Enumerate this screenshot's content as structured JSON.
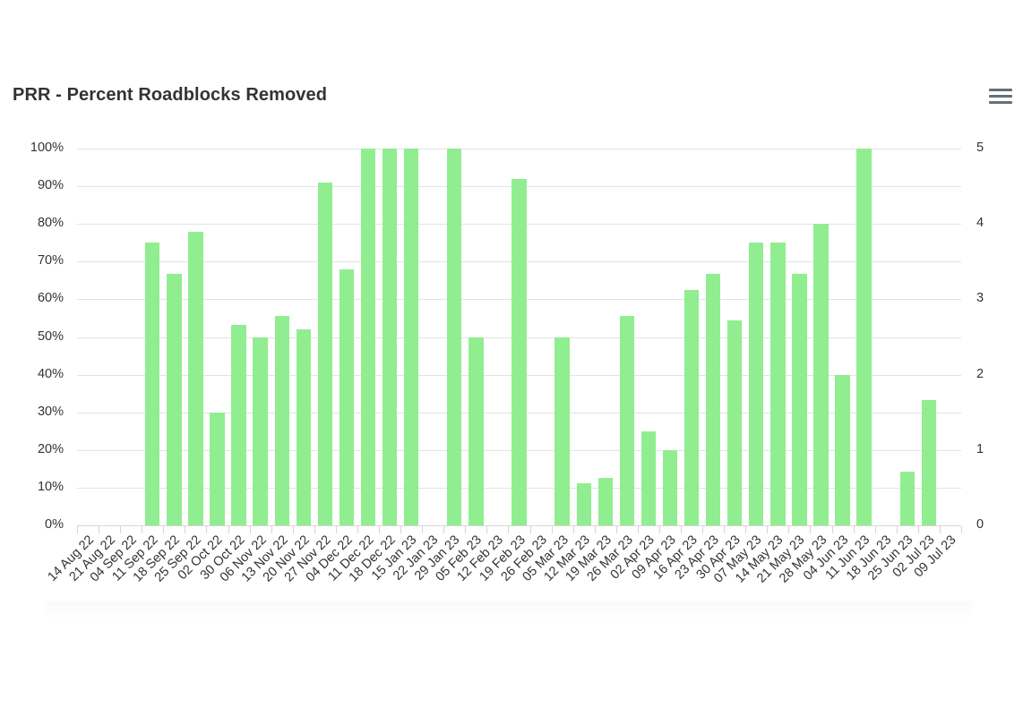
{
  "header": {
    "title": "PRR - Percent Roadblocks Removed",
    "menu_icon": "hamburger-menu-icon"
  },
  "colors": {
    "bar": "#90ee90",
    "grid": "#e3e3e3",
    "text": "#333333",
    "menu": "#666f7a"
  },
  "chart_data": {
    "type": "bar",
    "title": "PRR - Percent Roadblocks Removed",
    "xlabel": "",
    "ylabel": "",
    "ylim": [
      0,
      100
    ],
    "y_ticks": [
      "0%",
      "10%",
      "20%",
      "30%",
      "40%",
      "50%",
      "60%",
      "70%",
      "80%",
      "90%",
      "100%"
    ],
    "y2lim": [
      0,
      5
    ],
    "y2_ticks": [
      "0",
      "1",
      "2",
      "3",
      "4",
      "5"
    ],
    "grid": true,
    "legend": null,
    "categories": [
      "14 Aug 22",
      "21 Aug 22",
      "04 Sep 22",
      "11 Sep 22",
      "18 Sep 22",
      "25 Sep 22",
      "02 Oct 22",
      "30 Oct 22",
      "06 Nov 22",
      "13 Nov 22",
      "20 Nov 22",
      "27 Nov 22",
      "04 Dec 22",
      "11 Dec 22",
      "18 Dec 22",
      "15 Jan 23",
      "22 Jan 23",
      "29 Jan 23",
      "05 Feb 23",
      "12 Feb 23",
      "19 Feb 23",
      "26 Feb 23",
      "05 Mar 23",
      "12 Mar 23",
      "19 Mar 23",
      "26 Mar 23",
      "02 Apr 23",
      "09 Apr 23",
      "16 Apr 23",
      "23 Apr 23",
      "30 Apr 23",
      "07 May 23",
      "14 May 23",
      "21 May 23",
      "28 May 23",
      "04 Jun 23",
      "11 Jun 23",
      "18 Jun 23",
      "25 Jun 23",
      "02 Jul 23",
      "09 Jul 23"
    ],
    "series": [
      {
        "name": "Percent Roadblocks Removed",
        "values": [
          0,
          0,
          0,
          75,
          66.7,
          77.8,
          30,
          53.3,
          50,
          55.6,
          52,
          90.9,
          68,
          100,
          100,
          100,
          0,
          100,
          50,
          0,
          92,
          0,
          50,
          11.1,
          12.5,
          55.6,
          25,
          20,
          62.5,
          66.7,
          54.5,
          75,
          75,
          66.7,
          80,
          40,
          100,
          0,
          14.3,
          33.3,
          0
        ]
      }
    ]
  }
}
